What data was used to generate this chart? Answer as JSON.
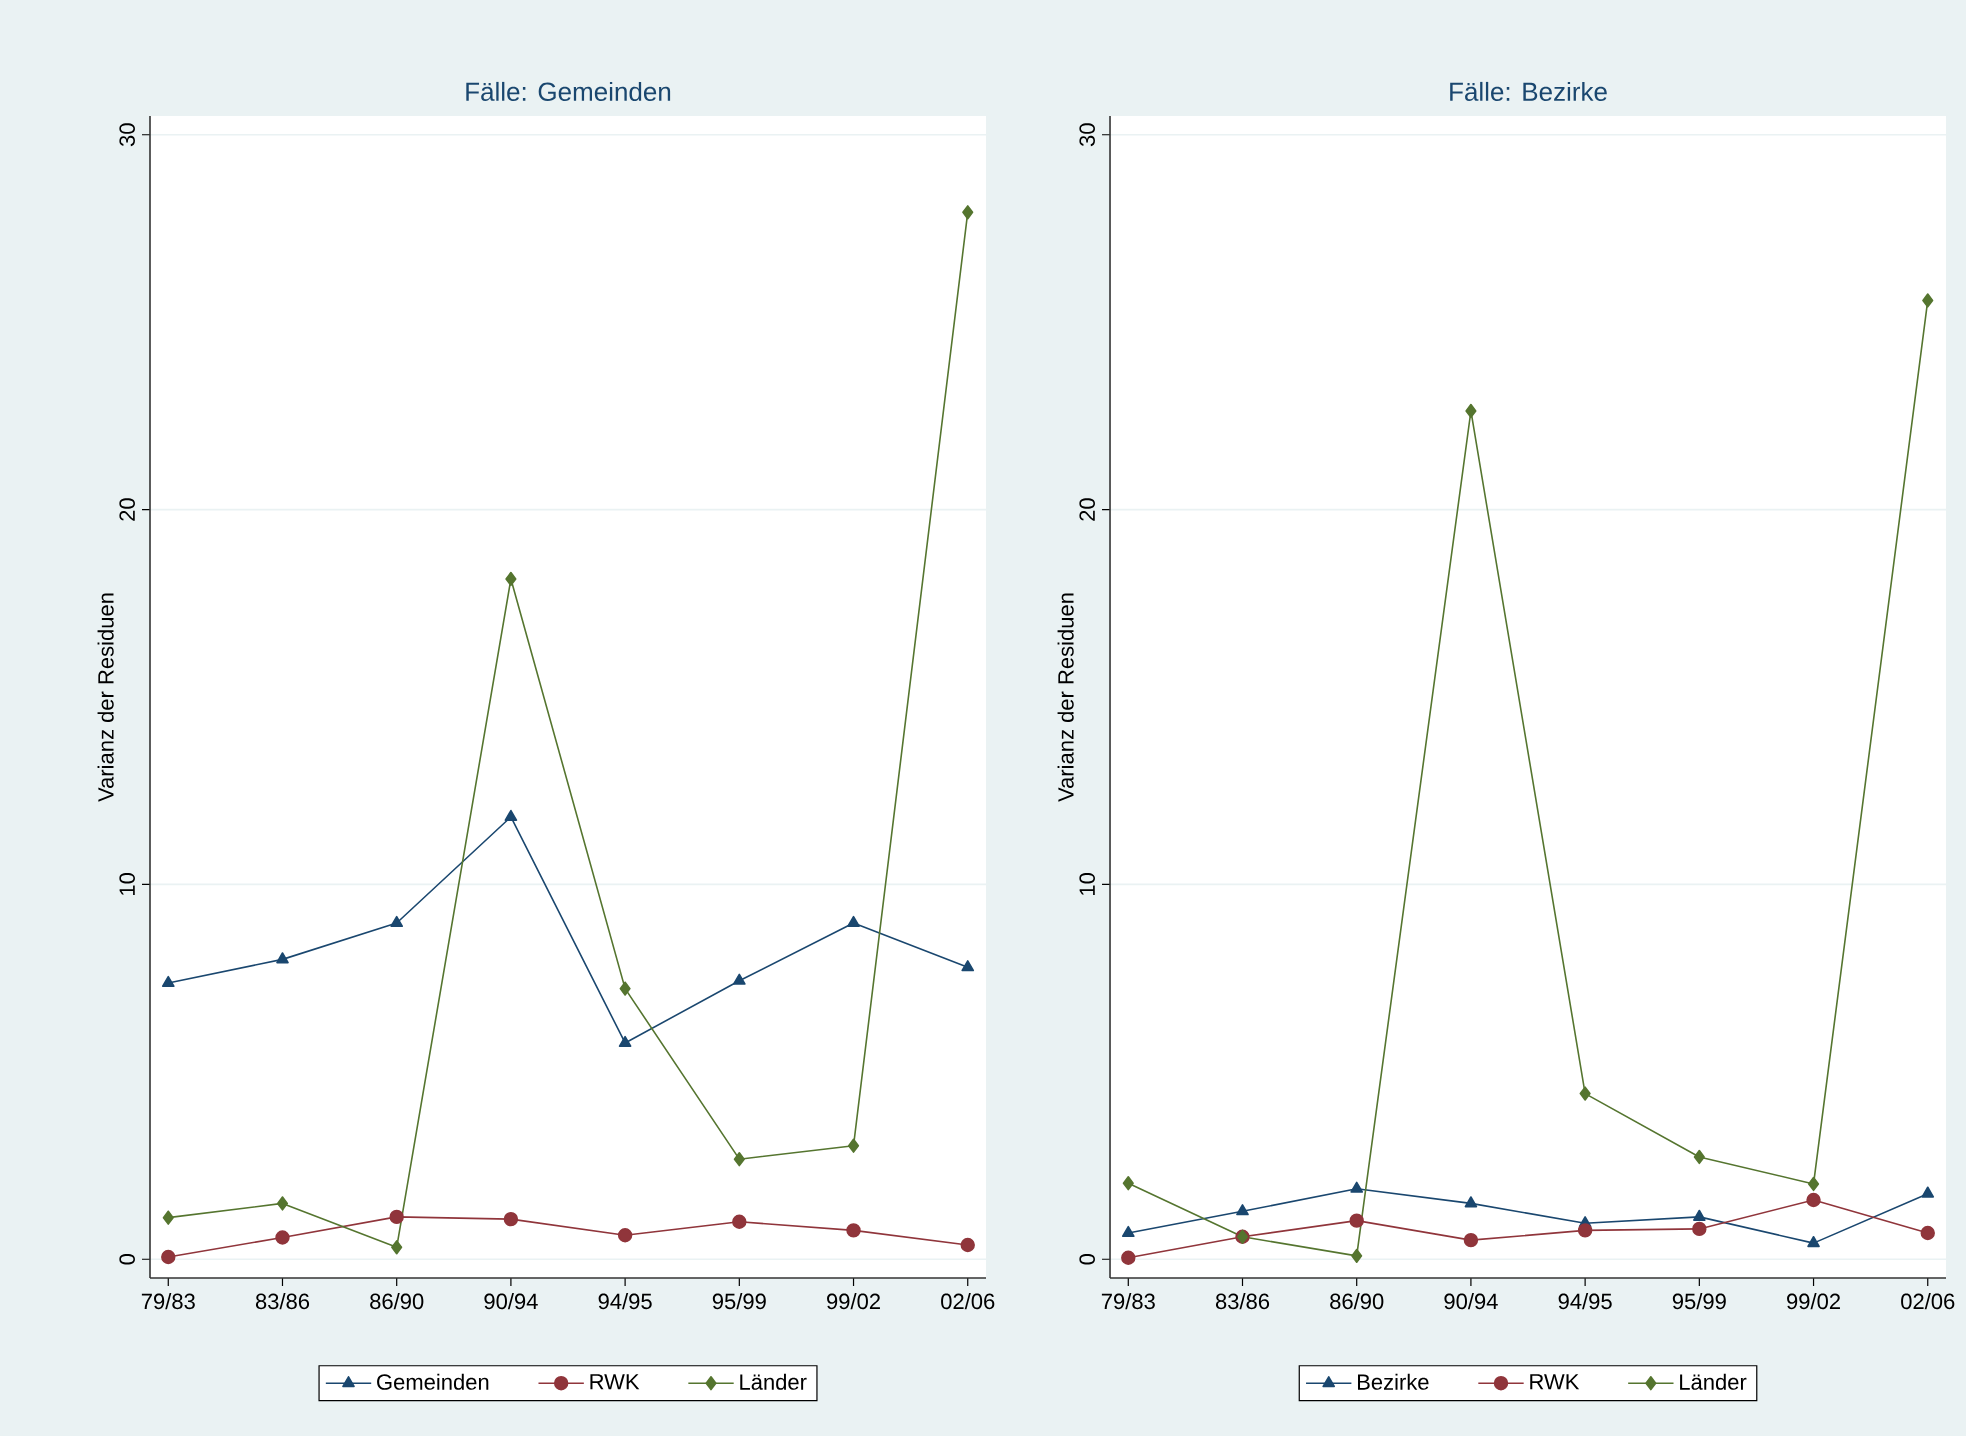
{
  "chart_data": [
    {
      "type": "line",
      "title": "Fälle: Gemeinden",
      "ylabel": "Varianz der Residuen",
      "categories": [
        "79/83",
        "83/86",
        "86/90",
        "90/94",
        "94/95",
        "95/99",
        "99/02",
        "02/06"
      ],
      "series": [
        {
          "name": "Gemeinden",
          "color": "#1a476f",
          "marker": "triangle",
          "values": [
            7.37,
            8.0,
            8.97,
            11.8,
            5.77,
            7.43,
            8.97,
            7.79
          ]
        },
        {
          "name": "RWK",
          "color": "#90353b",
          "marker": "circle",
          "values": [
            0.06,
            0.58,
            1.13,
            1.07,
            0.64,
            1.0,
            0.77,
            0.38
          ]
        },
        {
          "name": "Länder",
          "color": "#55752f",
          "marker": "diamond",
          "values": [
            1.11,
            1.49,
            0.32,
            18.15,
            7.22,
            2.67,
            3.03,
            27.93
          ]
        }
      ],
      "ylim": [
        -0.5,
        30.5
      ],
      "yticks": [
        0,
        10,
        20,
        30
      ],
      "grid": "y",
      "legend": "bottom"
    },
    {
      "type": "line",
      "title": "Fälle: Bezirke",
      "ylabel": "Varianz der Residuen",
      "categories": [
        "79/83",
        "83/86",
        "86/90",
        "90/94",
        "94/95",
        "95/99",
        "99/02",
        "02/06"
      ],
      "series": [
        {
          "name": "Bezirke",
          "color": "#1a476f",
          "marker": "triangle",
          "values": [
            0.7,
            1.28,
            1.88,
            1.49,
            0.96,
            1.13,
            0.43,
            1.75
          ]
        },
        {
          "name": "RWK",
          "color": "#90353b",
          "marker": "circle",
          "values": [
            0.04,
            0.6,
            1.03,
            0.51,
            0.77,
            0.81,
            1.58,
            0.7
          ]
        },
        {
          "name": "Länder",
          "color": "#55752f",
          "marker": "diamond",
          "values": [
            2.03,
            0.6,
            0.09,
            22.63,
            4.42,
            2.73,
            2.01,
            25.58
          ]
        }
      ],
      "ylim": [
        -0.5,
        30.5
      ],
      "yticks": [
        0,
        10,
        20,
        30
      ],
      "grid": "y",
      "legend": "bottom"
    }
  ]
}
